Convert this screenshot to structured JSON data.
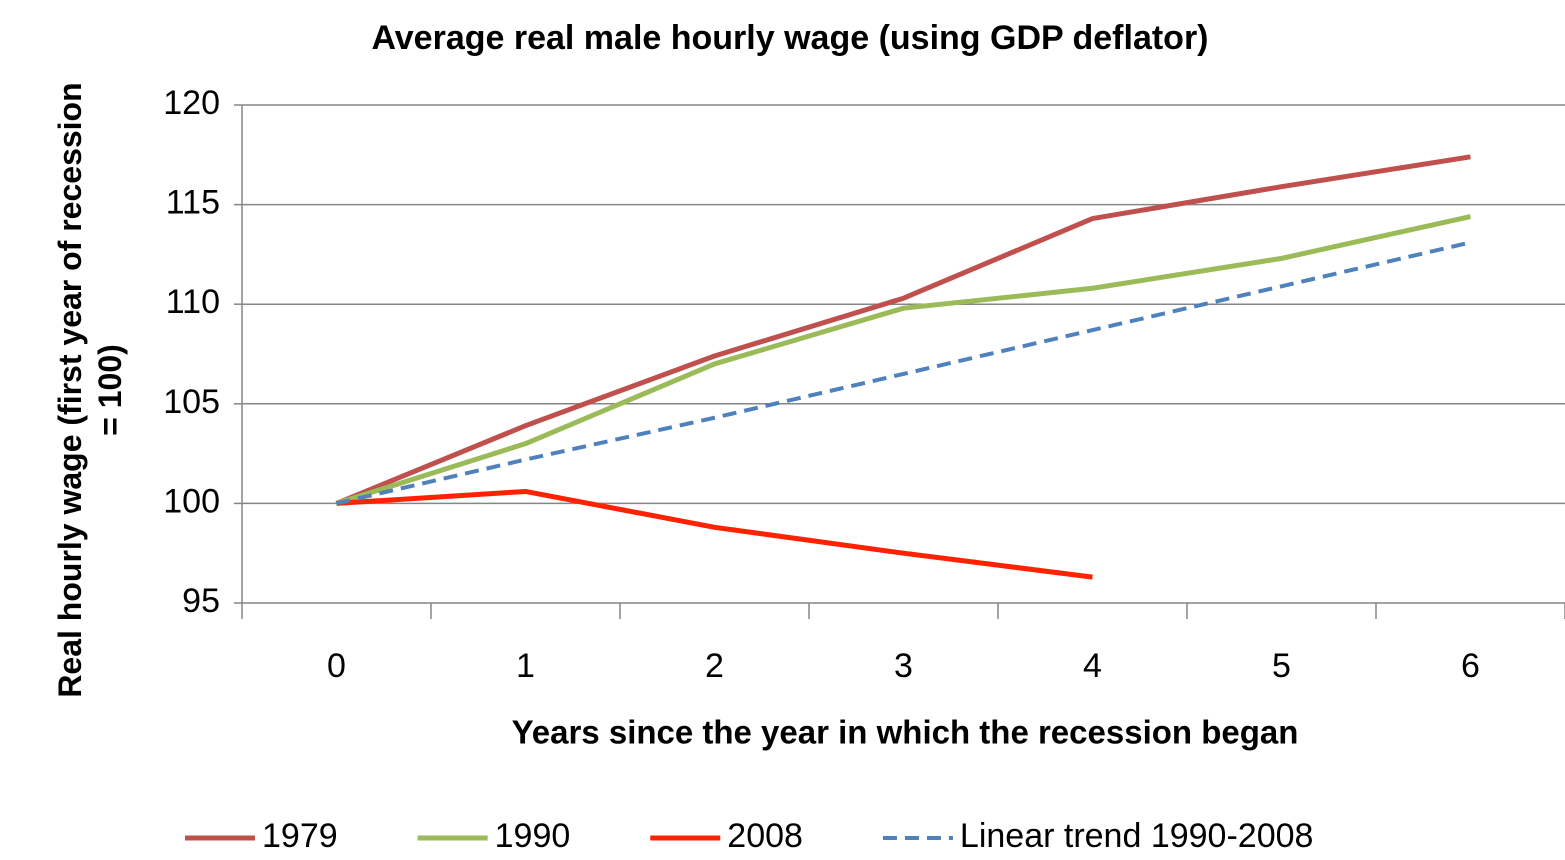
{
  "chart_data": {
    "type": "line",
    "title": "Average real male hourly wage (using GDP deflator)",
    "x_label": "Years since the year in which the recession began",
    "y_label": "Real hourly wage (first year of recession = 100)",
    "categories": [
      "0",
      "1",
      "2",
      "3",
      "4",
      "5",
      "6"
    ],
    "series": [
      {
        "name": "1979",
        "color": "#c0504d",
        "values": [
          100,
          103.9,
          107.4,
          110.3,
          114.3,
          115.9,
          117.4
        ]
      },
      {
        "name": "1990",
        "color": "#9bbb59",
        "values": [
          100,
          103.0,
          107.0,
          109.8,
          110.8,
          112.3,
          114.4
        ]
      },
      {
        "name": "2008",
        "color": "#ff2200",
        "values": [
          100,
          100.6,
          98.8,
          97.5,
          96.3,
          null,
          null
        ]
      },
      {
        "name": "Linear trend 1990-2008",
        "color": "#4f81bd",
        "dashed": true,
        "values": [
          100,
          102.2,
          104.3,
          106.5,
          108.7,
          110.9,
          113.1
        ]
      }
    ],
    "ylim": [
      95,
      120
    ],
    "yticks": [
      95,
      100,
      105,
      110,
      115,
      120
    ],
    "grid": true
  }
}
